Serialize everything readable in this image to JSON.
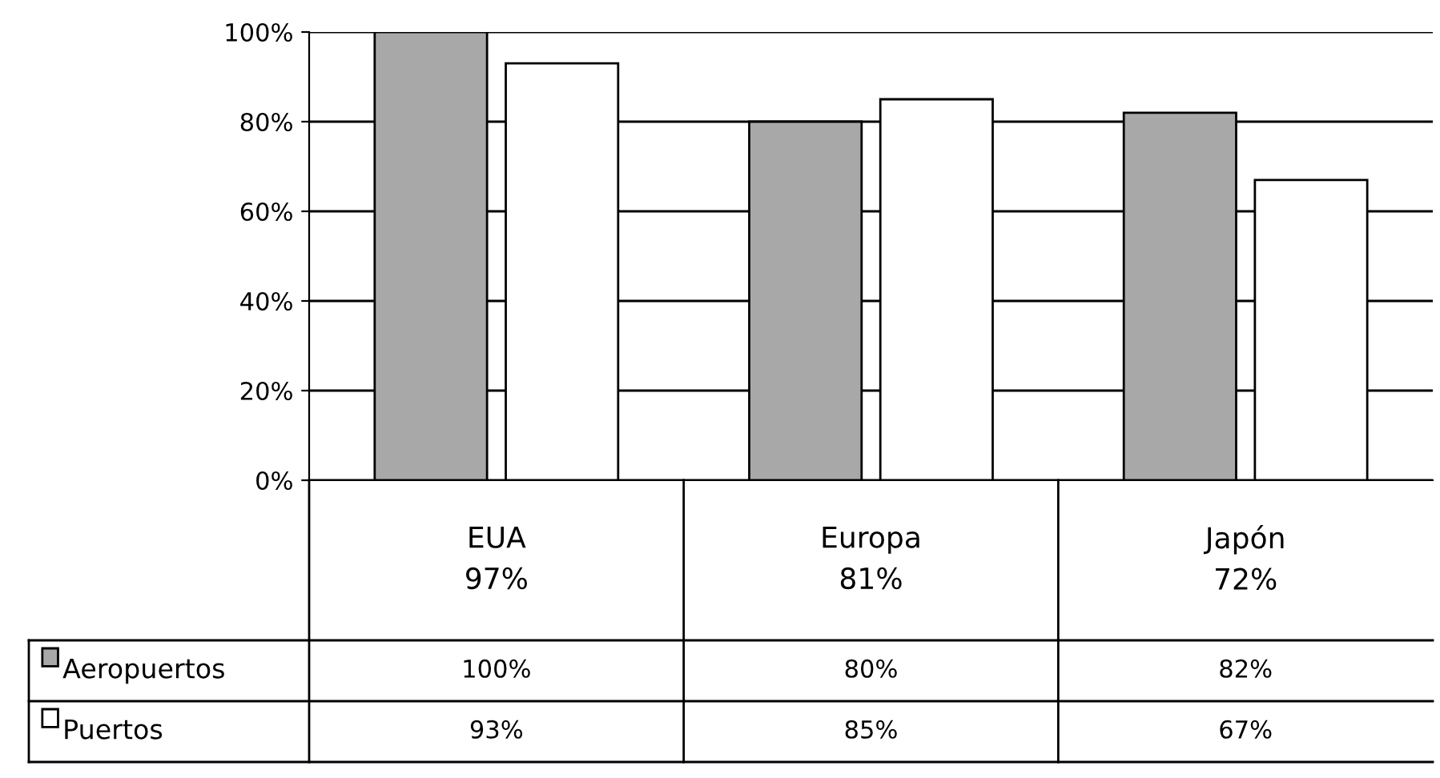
{
  "chart_data": {
    "type": "bar",
    "categories": [
      "EUA\n97%",
      "Europa\n81%",
      "Japón\n72%"
    ],
    "series": [
      {
        "name": "Aeropuertos",
        "color": "#a8a8a8",
        "values": [
          100,
          80,
          82
        ],
        "value_labels": [
          "100%",
          "80%",
          "82%"
        ]
      },
      {
        "name": "Puertos",
        "color": "#ffffff",
        "values": [
          93,
          85,
          67
        ],
        "value_labels": [
          "93%",
          "85%",
          "67%"
        ]
      }
    ],
    "ylim": [
      0,
      100
    ],
    "yticks": [
      {
        "value": 0,
        "label": "0%"
      },
      {
        "value": 20,
        "label": "20%"
      },
      {
        "value": 40,
        "label": "40%"
      },
      {
        "value": 60,
        "label": "60%"
      },
      {
        "value": 80,
        "label": "80%"
      },
      {
        "value": 100,
        "label": "100%"
      }
    ],
    "grid": "y",
    "legend": "bottom left"
  }
}
